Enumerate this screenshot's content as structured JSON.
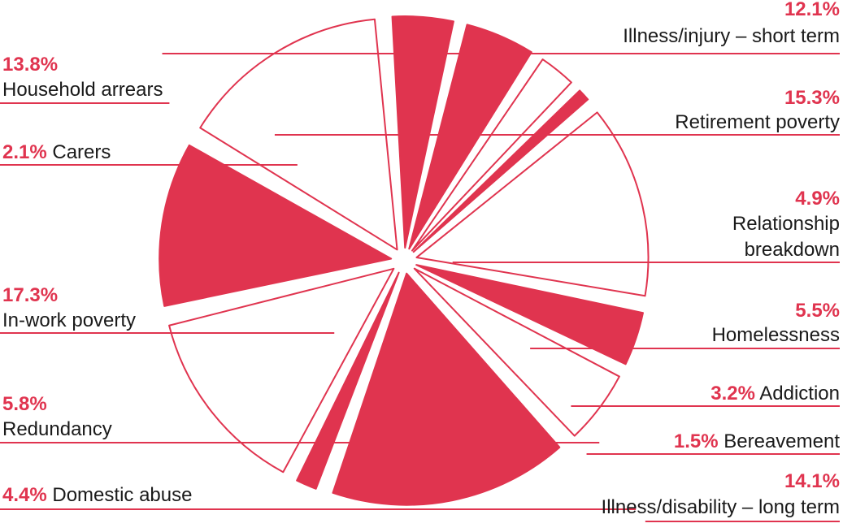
{
  "chart_data": {
    "type": "pie",
    "title": "",
    "colors": {
      "filled": "#e0344f",
      "outline": "#e0344f",
      "background": "#ffffff",
      "text": "#1a1a1a"
    },
    "slices": [
      {
        "name": "Illness/injury – short term",
        "value": 12.1,
        "pct_label": "12.1%",
        "style": "filled"
      },
      {
        "name": "Retirement poverty",
        "value": 15.3,
        "pct_label": "15.3%",
        "style": "outline"
      },
      {
        "name": "Relationship breakdown",
        "value": 4.9,
        "pct_label": "4.9%",
        "style": "filled"
      },
      {
        "name": "Homelessness",
        "value": 5.5,
        "pct_label": "5.5%",
        "style": "filled"
      },
      {
        "name": "Addiction",
        "value": 3.2,
        "pct_label": "3.2%",
        "style": "outline"
      },
      {
        "name": "Bereavement",
        "value": 1.5,
        "pct_label": "1.5%",
        "style": "filled"
      },
      {
        "name": "Illness/disability – long term",
        "value": 14.1,
        "pct_label": "14.1%",
        "style": "outline"
      },
      {
        "name": "Domestic abuse",
        "value": 4.4,
        "pct_label": "4.4%",
        "style": "filled"
      },
      {
        "name": "Redundancy",
        "value": 5.8,
        "pct_label": "5.8%",
        "style": "outline"
      },
      {
        "name": "In-work poverty",
        "value": 17.3,
        "pct_label": "17.3%",
        "style": "filled"
      },
      {
        "name": "Carers",
        "value": 2.1,
        "pct_label": "2.1%",
        "style": "filled"
      },
      {
        "name": "Household arrears",
        "value": 13.8,
        "pct_label": "13.8%",
        "style": "outline"
      }
    ],
    "labels": {
      "s0": {
        "pct": "12.1%",
        "line1": "Illness/injury – short term"
      },
      "s1": {
        "pct": "15.3%",
        "line1": "Retirement poverty"
      },
      "s2": {
        "pct": "4.9%",
        "line1": "Relationship",
        "line2": "breakdown"
      },
      "s3": {
        "pct": "5.5%",
        "line1": "Homelessness"
      },
      "s4": {
        "pct": "3.2%",
        "line1": "Addiction"
      },
      "s5": {
        "pct": "1.5%",
        "line1": "Bereavement"
      },
      "s6": {
        "pct": "14.1%",
        "line1": "Illness/disability – long term"
      },
      "s7": {
        "pct": "4.4%",
        "line1": "Domestic abuse"
      },
      "s8": {
        "pct": "5.8%",
        "line1": "Redundancy"
      },
      "s9": {
        "pct": "17.3%",
        "line1": "In-work poverty"
      },
      "s10": {
        "pct": "2.1%",
        "line1": "Carers"
      },
      "s11": {
        "pct": "13.8%",
        "line1": "Household arrears"
      }
    }
  }
}
